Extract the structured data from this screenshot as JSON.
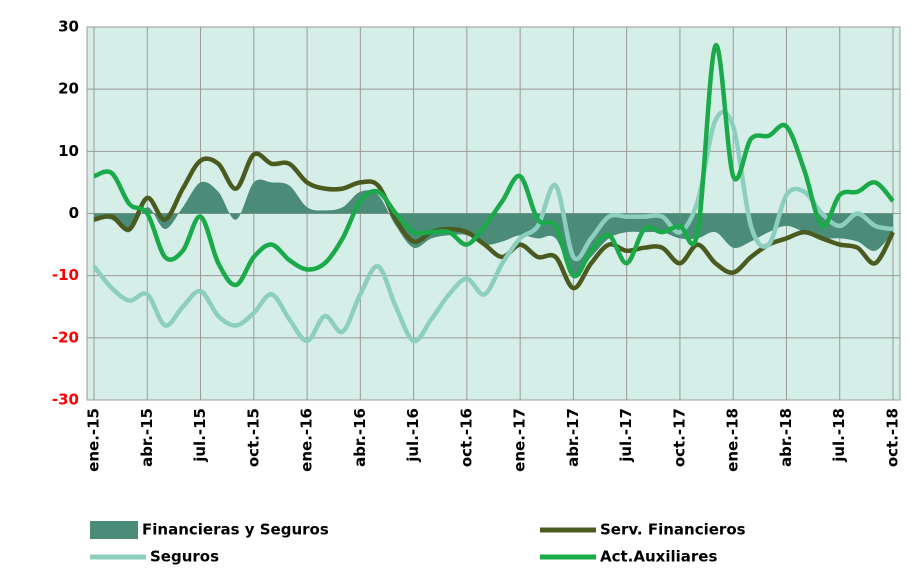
{
  "chart_data": {
    "type": "line",
    "categories": [
      "ene.-15",
      null,
      null,
      "abr.-15",
      null,
      null,
      "jul.-15",
      null,
      null,
      "oct.-15",
      null,
      null,
      "ene.-16",
      null,
      null,
      "abr.-16",
      null,
      null,
      "jul.-16",
      null,
      null,
      "oct.-16",
      null,
      null,
      "ene.-17",
      null,
      null,
      "abr.-17",
      null,
      null,
      "jul.-17",
      null,
      null,
      "oct.-17",
      null,
      null,
      "ene.-18",
      null,
      null,
      "abr.-18",
      null,
      null,
      "jul.-18",
      null,
      null,
      "oct.-18"
    ],
    "series": [
      {
        "name": "Financieras y Seguros",
        "kind": "area",
        "color": "#4a8c77",
        "values": [
          -1,
          -1,
          -3,
          1,
          -2.5,
          1,
          5,
          3.5,
          -1,
          5,
          5,
          4.5,
          1,
          0.5,
          1,
          3.5,
          3,
          -2,
          -5.5,
          -4,
          -3.5,
          -3.5,
          -5,
          -4.5,
          -3.5,
          -4,
          -4,
          -10,
          -7,
          -4,
          -3,
          -3,
          -3,
          -4,
          -4,
          -3,
          -5.5,
          -4.5,
          -3,
          -2,
          -3,
          -4,
          -4,
          -4.5,
          -6,
          -3
        ]
      },
      {
        "name": "Serv. Financieros",
        "kind": "line",
        "color": "#4b5a1f",
        "values": [
          -1,
          -0.5,
          -2.5,
          2.5,
          -1,
          4,
          8.5,
          8,
          4,
          9.5,
          8,
          8,
          5,
          4,
          4,
          5,
          4.5,
          -1,
          -4.5,
          -3,
          -2.5,
          -3,
          -5,
          -7,
          -5,
          -7,
          -7,
          -12,
          -8,
          -5,
          -6,
          -5.5,
          -5.5,
          -8,
          -5,
          -8,
          -9.5,
          -7,
          -5,
          -4,
          -3,
          -4,
          -5,
          -5.5,
          -8,
          -3
        ]
      },
      {
        "name": "Seguros",
        "kind": "line",
        "color": "#8ccfbf",
        "values": [
          -8.5,
          -12,
          -14,
          -13,
          -18,
          -15,
          -12.5,
          -16.5,
          -18,
          -16,
          -13,
          -17,
          -20.5,
          -16.5,
          -19,
          -13,
          -8.5,
          -15,
          -20.5,
          -17,
          -13,
          -10.5,
          -13,
          -8,
          -4,
          -2,
          4.5,
          -7,
          -4,
          -0.5,
          -0.5,
          -0.5,
          -0.5,
          -3,
          2,
          15,
          14,
          -2,
          -5,
          3,
          3.5,
          0,
          -2,
          0,
          -2,
          -2.5
        ]
      },
      {
        "name": "Act.Auxiliares",
        "kind": "line",
        "color": "#1aaa4a",
        "values": [
          6,
          6.5,
          1.5,
          0,
          -7,
          -6,
          -0.5,
          -8,
          -11.5,
          -7,
          -5,
          -7.5,
          -9,
          -8,
          -4,
          2,
          3.5,
          0,
          -3,
          -3,
          -3,
          -5,
          -2,
          2,
          6,
          -1,
          -2,
          -10,
          -6,
          -3.5,
          -8,
          -2.5,
          -3,
          -2,
          -3,
          27,
          6,
          12,
          12.5,
          14,
          7,
          -2,
          3,
          3.5,
          5,
          2
        ]
      }
    ],
    "ylim": [
      -30,
      30
    ],
    "yticks": [
      -30,
      -20,
      -10,
      0,
      10,
      20,
      30
    ],
    "tick_colors": {
      "positive": "#000000",
      "negative": "#ff0000"
    },
    "grid": true,
    "plot_background": "#d6eee8",
    "legend": "bottom"
  }
}
